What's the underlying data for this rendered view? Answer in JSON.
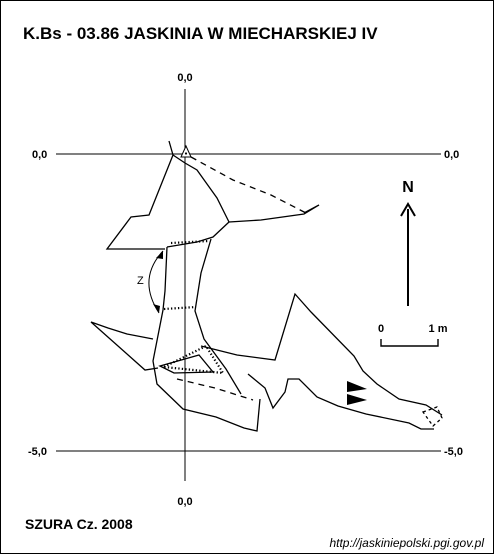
{
  "title": "K.Bs - 03.86  JASKINIA W MIECHARSKIEJ  IV",
  "axis_labels": {
    "top": "0,0",
    "bottom": "0,0",
    "upper_left": "0,0",
    "upper_right": "0,0",
    "lower_left": "-5,0",
    "lower_right": "-5,0"
  },
  "north_label": "N",
  "scale": {
    "start": "0",
    "end": "1 m"
  },
  "z_label": "Z",
  "credit": "SZURA Cz. 2008",
  "url": "http://jaskiniepolski.pgi.gov.pl",
  "colors": {
    "ink": "#000000",
    "background": "#ffffff"
  }
}
